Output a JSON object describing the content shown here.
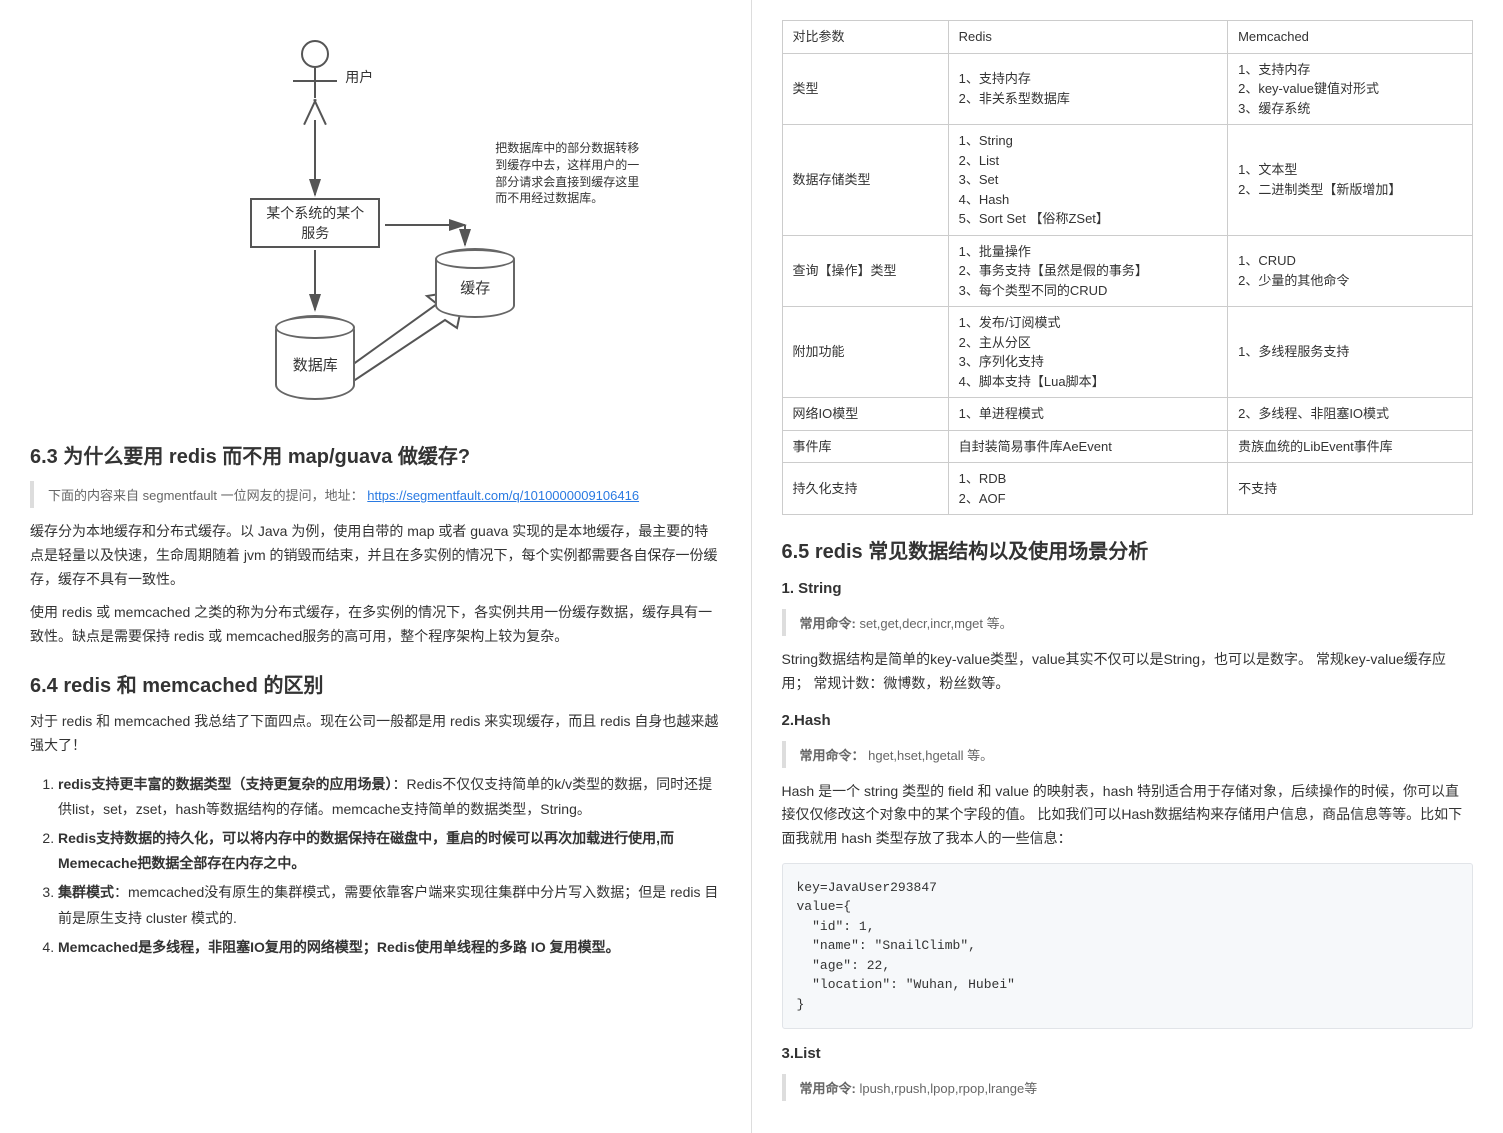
{
  "diagram": {
    "user_label": "用户",
    "service_box": "某个系统的某个\n服务",
    "cache_label": "缓存",
    "db_label": "数据库",
    "note": "把数据库中的部分数据转移\n到缓存中去，这样用户的一\n部分请求会直接到缓存这里\n而不用经过数据库。"
  },
  "sec63": {
    "title": "6.3 为什么要用 redis 而不用 map/guava 做缓存?",
    "quote_prefix": "下面的内容来自 segmentfault 一位网友的提问，地址：",
    "quote_link": "https://segmentfault.com/q/1010000009106416",
    "p1": "缓存分为本地缓存和分布式缓存。以 Java 为例，使用自带的 map 或者 guava 实现的是本地缓存，最主要的特点是轻量以及快速，生命周期随着 jvm 的销毁而结束，并且在多实例的情况下，每个实例都需要各自保存一份缓存，缓存不具有一致性。",
    "p2": "使用 redis 或 memcached 之类的称为分布式缓存，在多实例的情况下，各实例共用一份缓存数据，缓存具有一致性。缺点是需要保持 redis 或 memcached服务的高可用，整个程序架构上较为复杂。"
  },
  "sec64": {
    "title": "6.4 redis 和 memcached 的区别",
    "intro": "对于 redis 和 memcached 我总结了下面四点。现在公司一般都是用 redis 来实现缓存，而且 redis 自身也越来越强大了！",
    "items": [
      {
        "b": "redis支持更丰富的数据类型（支持更复杂的应用场景）",
        "rest": "：Redis不仅仅支持简单的k/v类型的数据，同时还提供list，set，zset，hash等数据结构的存储。memcache支持简单的数据类型，String。"
      },
      {
        "b": "Redis支持数据的持久化，可以将内存中的数据保持在磁盘中，重启的时候可以再次加载进行使用,而Memecache把数据全部存在内存之中。",
        "rest": ""
      },
      {
        "b": "集群模式",
        "rest": "：memcached没有原生的集群模式，需要依靠客户端来实现往集群中分片写入数据；但是 redis 目前是原生支持 cluster 模式的."
      },
      {
        "b": "Memcached是多线程，非阻塞IO复用的网络模型；Redis使用单线程的多路 IO 复用模型。",
        "rest": ""
      }
    ]
  },
  "cmp_table": {
    "header": [
      "对比参数",
      "Redis",
      "Memcached"
    ],
    "rows": [
      [
        "类型",
        "1、支持内存\n2、非关系型数据库",
        "1、支持内存\n2、key-value键值对形式\n3、缓存系统"
      ],
      [
        "数据存储类型",
        "1、String\n2、List\n3、Set\n4、Hash\n5、Sort Set 【俗称ZSet】",
        "1、文本型\n2、二进制类型【新版增加】"
      ],
      [
        "查询【操作】类型",
        "1、批量操作\n2、事务支持【虽然是假的事务】\n3、每个类型不同的CRUD",
        "1、CRUD\n2、少量的其他命令"
      ],
      [
        "附加功能",
        "1、发布/订阅模式\n2、主从分区\n3、序列化支持\n4、脚本支持【Lua脚本】",
        "1、多线程服务支持"
      ],
      [
        "网络IO模型",
        "1、单进程模式",
        "2、多线程、非阻塞IO模式"
      ],
      [
        "事件库",
        "自封装简易事件库AeEvent",
        "贵族血统的LibEvent事件库"
      ],
      [
        "持久化支持",
        "1、RDB\n2、AOF",
        "不支持"
      ]
    ]
  },
  "sec65": {
    "title": "6.5 redis 常见数据结构以及使用场景分析",
    "s1_title": "1. String",
    "s1_cmd_label": "常用命令:",
    "s1_cmd": " set,get,decr,incr,mget 等。",
    "s1_p": "String数据结构是简单的key-value类型，value其实不仅可以是String，也可以是数字。 常规key-value缓存应用； 常规计数：微博数，粉丝数等。",
    "s2_title": "2.Hash",
    "s2_cmd_label": "常用命令：",
    "s2_cmd": " hget,hset,hgetall 等。",
    "s2_p": "Hash 是一个 string 类型的 field 和 value 的映射表，hash 特别适合用于存储对象，后续操作的时候，你可以直接仅仅修改这个对象中的某个字段的值。 比如我们可以Hash数据结构来存储用户信息，商品信息等等。比如下面我就用 hash 类型存放了我本人的一些信息：",
    "code": "key=JavaUser293847\nvalue={\n  \"id\": 1,\n  \"name\": \"SnailClimb\",\n  \"age\": 22,\n  \"location\": \"Wuhan, Hubei\"\n}",
    "s3_title": "3.List",
    "s3_cmd_label": "常用命令:",
    "s3_cmd": " lpush,rpush,lpop,rpop,lrange等"
  }
}
